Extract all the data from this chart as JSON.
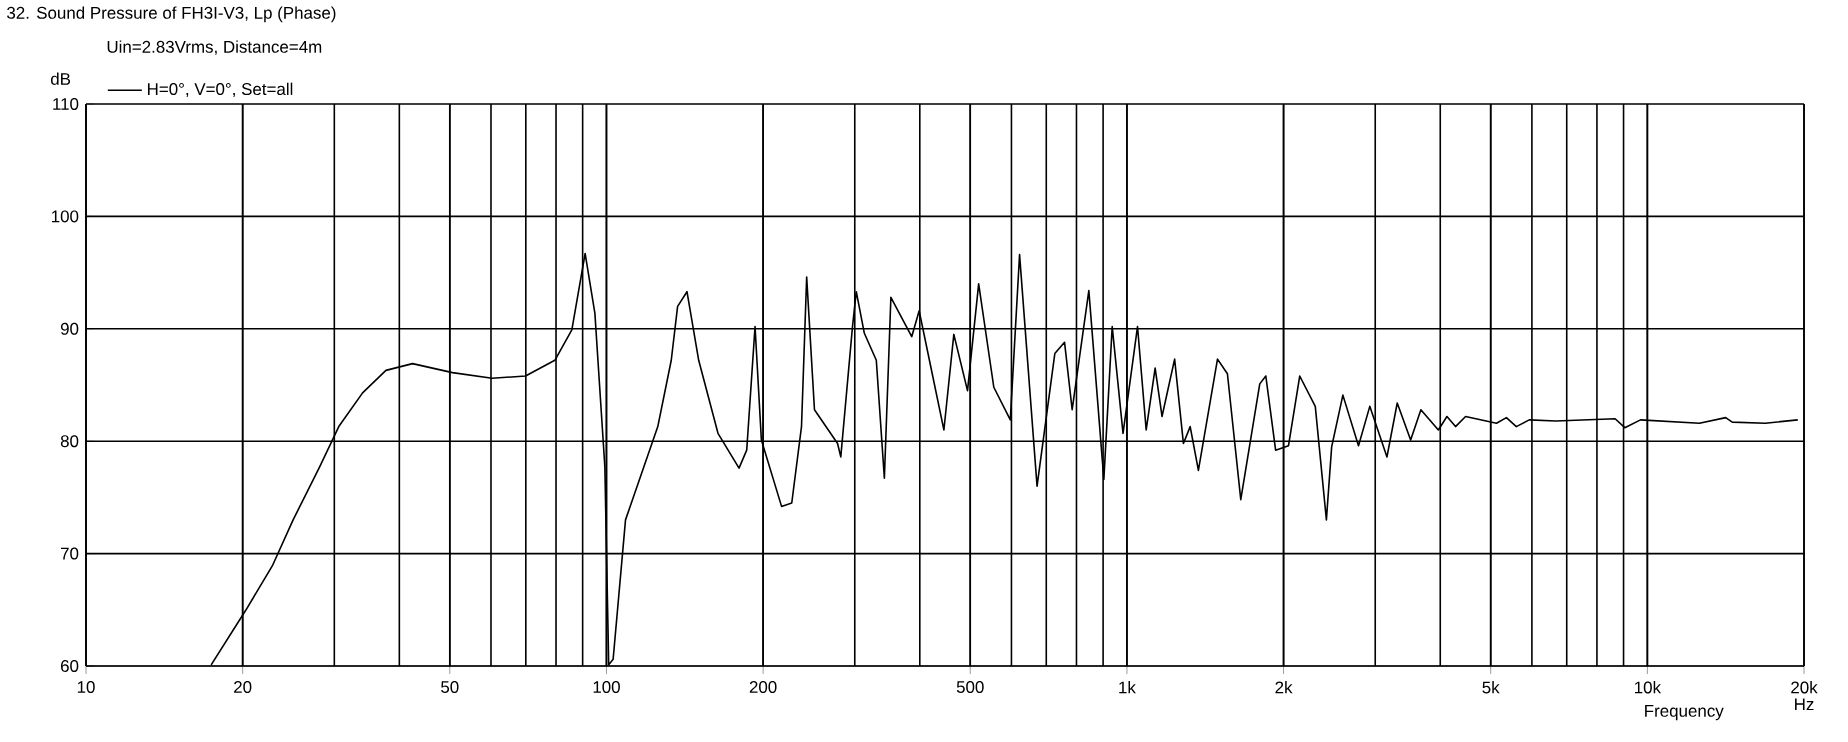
{
  "chart_data": {
    "type": "line",
    "title": "32. Sound Pressure of FH3I-V3, Lp (Phase)",
    "subtitle": "Uin=2.83Vrms, Distance=4m",
    "ylabel": "dB",
    "xlabel": "Frequency",
    "annotations": [
      "Hz"
    ],
    "log": "x",
    "grid": true,
    "legend": "top left",
    "xlim": [
      10,
      20000
    ],
    "ylim": [
      60,
      110
    ],
    "xticks": [
      10,
      20,
      50,
      100,
      200,
      500,
      {
        "value": 1000,
        "label": "1k"
      },
      {
        "value": 2000,
        "label": "2k"
      },
      {
        "value": 5000,
        "label": "5k"
      },
      {
        "value": 10000,
        "label": "10k"
      },
      {
        "value": 20000,
        "label": "20k"
      }
    ],
    "yticks": [
      60,
      70,
      80,
      90,
      100,
      110
    ],
    "series": [
      {
        "name": "H=0°, V=0°, Set=all",
        "color": "#000000",
        "x": [
          17.4,
          20.3,
          22.8,
          25.0,
          28.1,
          30.6,
          34.0,
          37.7,
          42.4,
          50.6,
          60.3,
          69.9,
          79.6,
          85.8,
          91.0,
          95,
          99.3,
          101,
          103,
          108.8,
          125.5,
          133.2,
          137,
          142.8,
          150.4,
          163.8,
          179.8,
          186,
          193,
          198.5,
          217,
          227,
          237,
          242.5,
          251,
          278,
          282,
          297,
          302,
          313,
          330,
          342,
          352,
          386,
          399,
          420,
          445,
          465,
          494,
          519,
          555,
          597,
          622,
          672,
          727,
          759,
          785,
          845,
          903,
          937,
          983,
          1048,
          1089,
          1133,
          1168,
          1235,
          1284,
          1323,
          1372,
          1493,
          1560,
          1655,
          1800,
          1849,
          1931,
          2044,
          2148,
          2301,
          2417,
          2474,
          2600,
          2786,
          2929,
          3160,
          3307,
          3509,
          3672,
          3967,
          4120,
          4280,
          4474,
          5130,
          5360,
          5600,
          5930,
          6670,
          8670,
          9050,
          9700,
          12590,
          14140,
          14560,
          16840,
          19460
        ],
        "values": [
          60.1,
          65.0,
          68.9,
          73.0,
          77.7,
          81.3,
          84.3,
          86.3,
          86.9,
          86.1,
          85.6,
          85.8,
          87.2,
          89.9,
          96.7,
          91.4,
          77.7,
          60.1,
          60.6,
          73.0,
          81.3,
          87.2,
          92.0,
          93.3,
          87.2,
          80.7,
          77.6,
          79.2,
          90.2,
          80.1,
          74.2,
          74.5,
          81.3,
          94.6,
          82.8,
          79.8,
          78.6,
          90.2,
          93.3,
          89.6,
          87.2,
          76.7,
          92.8,
          89.3,
          91.6,
          86.6,
          81.0,
          89.5,
          84.5,
          94.0,
          84.8,
          81.9,
          96.6,
          76.0,
          87.8,
          88.8,
          82.8,
          93.4,
          76.6,
          90.2,
          80.7,
          90.2,
          81.0,
          86.5,
          82.2,
          87.3,
          79.8,
          81.3,
          77.4,
          87.3,
          86.0,
          74.8,
          85.1,
          85.8,
          79.2,
          79.6,
          85.8,
          83.1,
          73.0,
          79.5,
          84.1,
          79.6,
          83.1,
          78.6,
          83.4,
          80.1,
          82.8,
          81.0,
          82.2,
          81.3,
          82.2,
          81.6,
          82.1,
          81.3,
          81.9,
          81.8,
          82.0,
          81.2,
          81.9,
          81.6,
          82.1,
          81.7,
          81.6,
          81.9
        ]
      }
    ]
  }
}
